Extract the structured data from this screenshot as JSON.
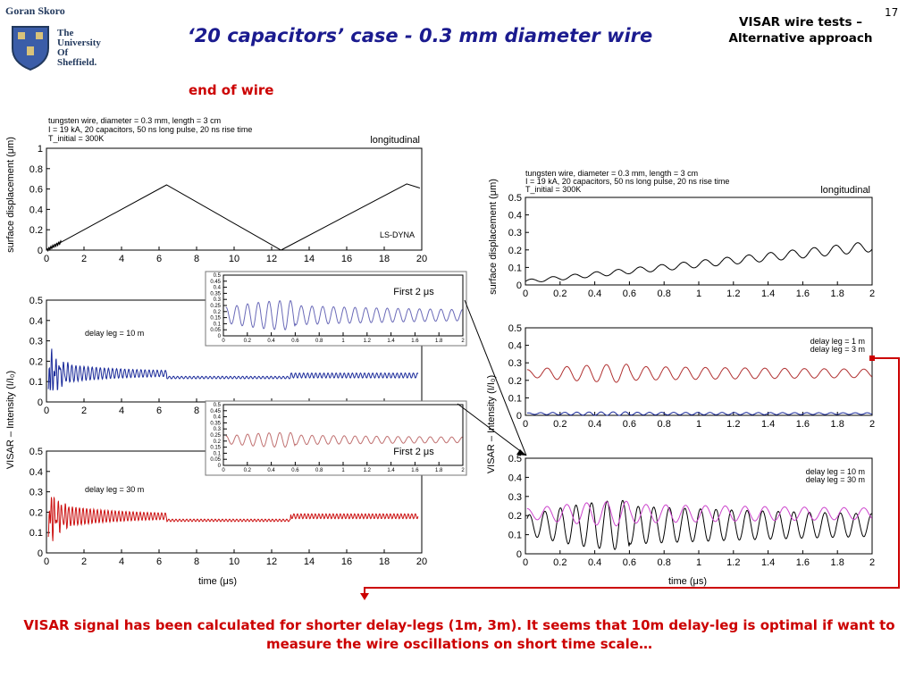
{
  "header": {
    "author": "Goran Skoro",
    "university": [
      "The",
      "University",
      "Of",
      "Sheffield."
    ],
    "title": "‘20 capacitors’ case  - 0.3 mm diameter wire",
    "corner_line1": "VISAR wire tests –",
    "corner_line2": "Alternative approach",
    "page_number": "17"
  },
  "section_label": "end of wire",
  "annotations": {
    "first_a": "First 2 μs",
    "first_b": "First 2 μs"
  },
  "conclusion": "VISAR signal has been calculated for shorter delay-legs (1m, 3m). It seems that 10m delay-leg is optimal if want to measure the wire oscillations on short time scale…",
  "colors": {
    "title": "#1b1b8f",
    "accent_red": "#cc0000",
    "blue_trace": "#1a2a9a",
    "red_trace": "#cc1111",
    "magenta_trace": "#cc44cc"
  },
  "chart_data": [
    {
      "id": "left-displacement",
      "type": "line",
      "notes": [
        "tungsten wire, diameter = 0.3 mm, length = 3 cm",
        "I = 19 kA, 20 capacitors, 50 ns long pulse, 20 ns rise time",
        "T_initial = 300K"
      ],
      "label": "longitudinal",
      "inner_label": "LS-DYNA",
      "ylabel": "surface displacement (μm)",
      "xlim": [
        0,
        20
      ],
      "ylim": [
        0,
        1
      ],
      "xticks": [
        "0",
        "2",
        "4",
        "6",
        "8",
        "10",
        "12",
        "14",
        "16",
        "18",
        "20"
      ],
      "yticks": [
        "0",
        "0.2",
        "0.4",
        "0.6",
        "0.8",
        "1"
      ],
      "series": [
        {
          "points": [
            [
              0,
              0
            ],
            [
              0.8,
              0.08
            ],
            [
              6.4,
              0.64
            ],
            [
              12.5,
              0
            ],
            [
              19.2,
              0.65
            ],
            [
              19.9,
              0.61
            ]
          ],
          "color": "#000000"
        }
      ]
    },
    {
      "id": "left-visar-10m",
      "type": "line",
      "legend": "delay leg = 10 m",
      "xlim": [
        0,
        20
      ],
      "ylim": [
        0,
        0.5
      ],
      "xticks": [
        "0",
        "2",
        "4",
        "6",
        "8",
        "10",
        "12",
        "14",
        "16",
        "18",
        "20"
      ],
      "yticks": [
        "0",
        "0.1",
        "0.2",
        "0.3",
        "0.4",
        "0.5"
      ],
      "series": [
        {
          "color": "#1a2a9a",
          "mean": 0.14,
          "amp": 0.05,
          "decay_to": 0.01
        }
      ]
    },
    {
      "id": "left-visar-30m",
      "type": "line",
      "legend": "delay leg = 30 m",
      "xlabel": "time (μs)",
      "xlim": [
        0,
        20
      ],
      "ylim": [
        0,
        0.5
      ],
      "xticks": [
        "0",
        "2",
        "4",
        "6",
        "8",
        "10",
        "12",
        "14",
        "16",
        "18",
        "20"
      ],
      "yticks": [
        "0",
        "0.1",
        "0.2",
        "0.3",
        "0.4",
        "0.5"
      ],
      "series": [
        {
          "color": "#cc1111",
          "mean": 0.18,
          "amp": 0.06,
          "decay_to": 0.01
        }
      ]
    },
    {
      "id": "inset-blue",
      "type": "line",
      "xlim": [
        0,
        2
      ],
      "ylim": [
        0,
        0.5
      ],
      "xticks": [
        "0",
        "0.2",
        "0.4",
        "0.6",
        "0.8",
        "1",
        "1.2",
        "1.4",
        "1.6",
        "1.8",
        "2"
      ],
      "yticks": [
        "0",
        "0.05",
        "0.1",
        "0.15",
        "0.2",
        "0.25",
        "0.3",
        "0.35",
        "0.4",
        "0.45",
        "0.5"
      ],
      "series": [
        {
          "color": "#6a6ab8",
          "mean": 0.17,
          "amp": 0.1
        }
      ]
    },
    {
      "id": "inset-red",
      "type": "line",
      "xlim": [
        0,
        2
      ],
      "ylim": [
        0,
        0.5
      ],
      "xticks": [
        "0",
        "0.2",
        "0.4",
        "0.6",
        "0.8",
        "1",
        "1.2",
        "1.4",
        "1.6",
        "1.8",
        "2"
      ],
      "yticks": [
        "0",
        "0.05",
        "0.1",
        "0.15",
        "0.2",
        "0.25",
        "0.3",
        "0.35",
        "0.4",
        "0.45",
        "0.5"
      ],
      "series": [
        {
          "color": "#c07070",
          "mean": 0.21,
          "amp": 0.05
        }
      ]
    },
    {
      "id": "right-displacement",
      "type": "line",
      "notes": [
        "tungsten wire, diameter = 0.3 mm, length = 3 cm",
        "I = 19 kA, 20 capacitors, 50 ns long pulse, 20 ns rise time",
        "T_initial = 300K"
      ],
      "label": "longitudinal",
      "ylabel": "surface displacement (μm)",
      "xlim": [
        0,
        2
      ],
      "ylim": [
        0,
        0.5
      ],
      "xticks": [
        "0",
        "0.2",
        "0.4",
        "0.6",
        "0.8",
        "1",
        "1.2",
        "1.4",
        "1.6",
        "1.8",
        "2"
      ],
      "yticks": [
        "0",
        "0.1",
        "0.2",
        "0.3",
        "0.4",
        "0.5"
      ],
      "series": [
        {
          "color": "#000000",
          "start": 0.0,
          "end": 0.2,
          "amp": 0.02
        }
      ]
    },
    {
      "id": "right-visar-short",
      "type": "line",
      "legend": [
        "delay leg = 1 m",
        "delay leg = 3 m"
      ],
      "xlim": [
        0,
        2
      ],
      "ylim": [
        0,
        0.5
      ],
      "xticks": [
        "0",
        "0.2",
        "0.4",
        "0.6",
        "0.8",
        "1",
        "1.2",
        "1.4",
        "1.6",
        "1.8",
        "2"
      ],
      "yticks": [
        "0",
        "0.1",
        "0.2",
        "0.3",
        "0.4",
        "0.5"
      ],
      "series": [
        {
          "name": "delay leg = 1 m",
          "color": "#1a2a9a",
          "mean": 0.01,
          "amp": 0.008
        },
        {
          "name": "delay leg = 3 m",
          "color": "#b03030",
          "mean": 0.24,
          "amp": 0.04
        }
      ]
    },
    {
      "id": "right-visar-long",
      "type": "line",
      "legend": [
        "delay leg = 10 m",
        "delay leg = 30 m"
      ],
      "xlabel": "time (μs)",
      "xlim": [
        0,
        2
      ],
      "ylim": [
        0,
        0.5
      ],
      "xticks": [
        "0",
        "0.2",
        "0.4",
        "0.6",
        "0.8",
        "1",
        "1.2",
        "1.4",
        "1.6",
        "1.8",
        "2"
      ],
      "yticks": [
        "0",
        "0.1",
        "0.2",
        "0.3",
        "0.4",
        "0.5"
      ],
      "series": [
        {
          "name": "delay leg = 10 m",
          "color": "#000000",
          "mean": 0.15,
          "amp": 0.1
        },
        {
          "name": "delay leg = 30 m",
          "color": "#cc44cc",
          "mean": 0.21,
          "amp": 0.05
        }
      ]
    }
  ],
  "shared_ylabel": "VISAR – Intensity (I/I₀)"
}
